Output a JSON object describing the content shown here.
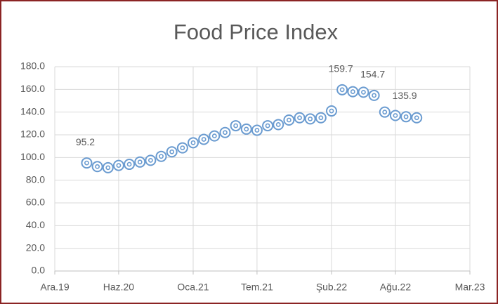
{
  "chart_data": {
    "type": "scatter",
    "title": "Food Price Index",
    "x": [
      "2020-03",
      "2020-04",
      "2020-05",
      "2020-06",
      "2020-07",
      "2020-08",
      "2020-09",
      "2020-10",
      "2020-11",
      "2020-12",
      "2021-01",
      "2021-02",
      "2021-03",
      "2021-04",
      "2021-05",
      "2021-06",
      "2021-07",
      "2021-08",
      "2021-09",
      "2021-10",
      "2021-11",
      "2021-12",
      "2022-01",
      "2022-02",
      "2022-03",
      "2022-04",
      "2022-05",
      "2022-06",
      "2022-07",
      "2022-08",
      "2022-09",
      "2022-10"
    ],
    "values": [
      95.2,
      92,
      91,
      93,
      94,
      96,
      97.5,
      101,
      105,
      108.5,
      113,
      116,
      119,
      122,
      128,
      125,
      124,
      128,
      129,
      133,
      135,
      134,
      135,
      141,
      159.7,
      158,
      157.5,
      154.7,
      140,
      137,
      135.9,
      135
    ],
    "value_labels": [
      "95.2",
      null,
      null,
      null,
      null,
      null,
      null,
      null,
      null,
      null,
      null,
      null,
      null,
      null,
      null,
      null,
      null,
      null,
      null,
      null,
      null,
      null,
      null,
      null,
      "159.7",
      null,
      null,
      "154.7",
      null,
      null,
      "135.9",
      null
    ],
    "color": "#6a9bd0",
    "xlim": [
      "2019-12",
      "2023-03"
    ],
    "xticks": [
      {
        "value": "2019-12",
        "label": "Ara.19"
      },
      {
        "value": "2020-06",
        "label": "Haz.20"
      },
      {
        "value": "2021-01",
        "label": "Oca.21"
      },
      {
        "value": "2021-07",
        "label": "Tem.21"
      },
      {
        "value": "2022-02",
        "label": "Şub.22"
      },
      {
        "value": "2022-08",
        "label": "Ağu.22"
      },
      {
        "value": "2023-03",
        "label": "Mar.23"
      }
    ],
    "ylim": [
      0,
      180
    ],
    "yticks": [
      {
        "value": 0,
        "label": "0.0"
      },
      {
        "value": 20,
        "label": "20.0"
      },
      {
        "value": 40,
        "label": "40.0"
      },
      {
        "value": 60,
        "label": "60.0"
      },
      {
        "value": 80,
        "label": "80.0"
      },
      {
        "value": 100,
        "label": "100.0"
      },
      {
        "value": 120,
        "label": "120.0"
      },
      {
        "value": 140,
        "label": "140.0"
      },
      {
        "value": 160,
        "label": "160.0"
      },
      {
        "value": 180,
        "label": "180.0"
      }
    ],
    "grid": true
  }
}
